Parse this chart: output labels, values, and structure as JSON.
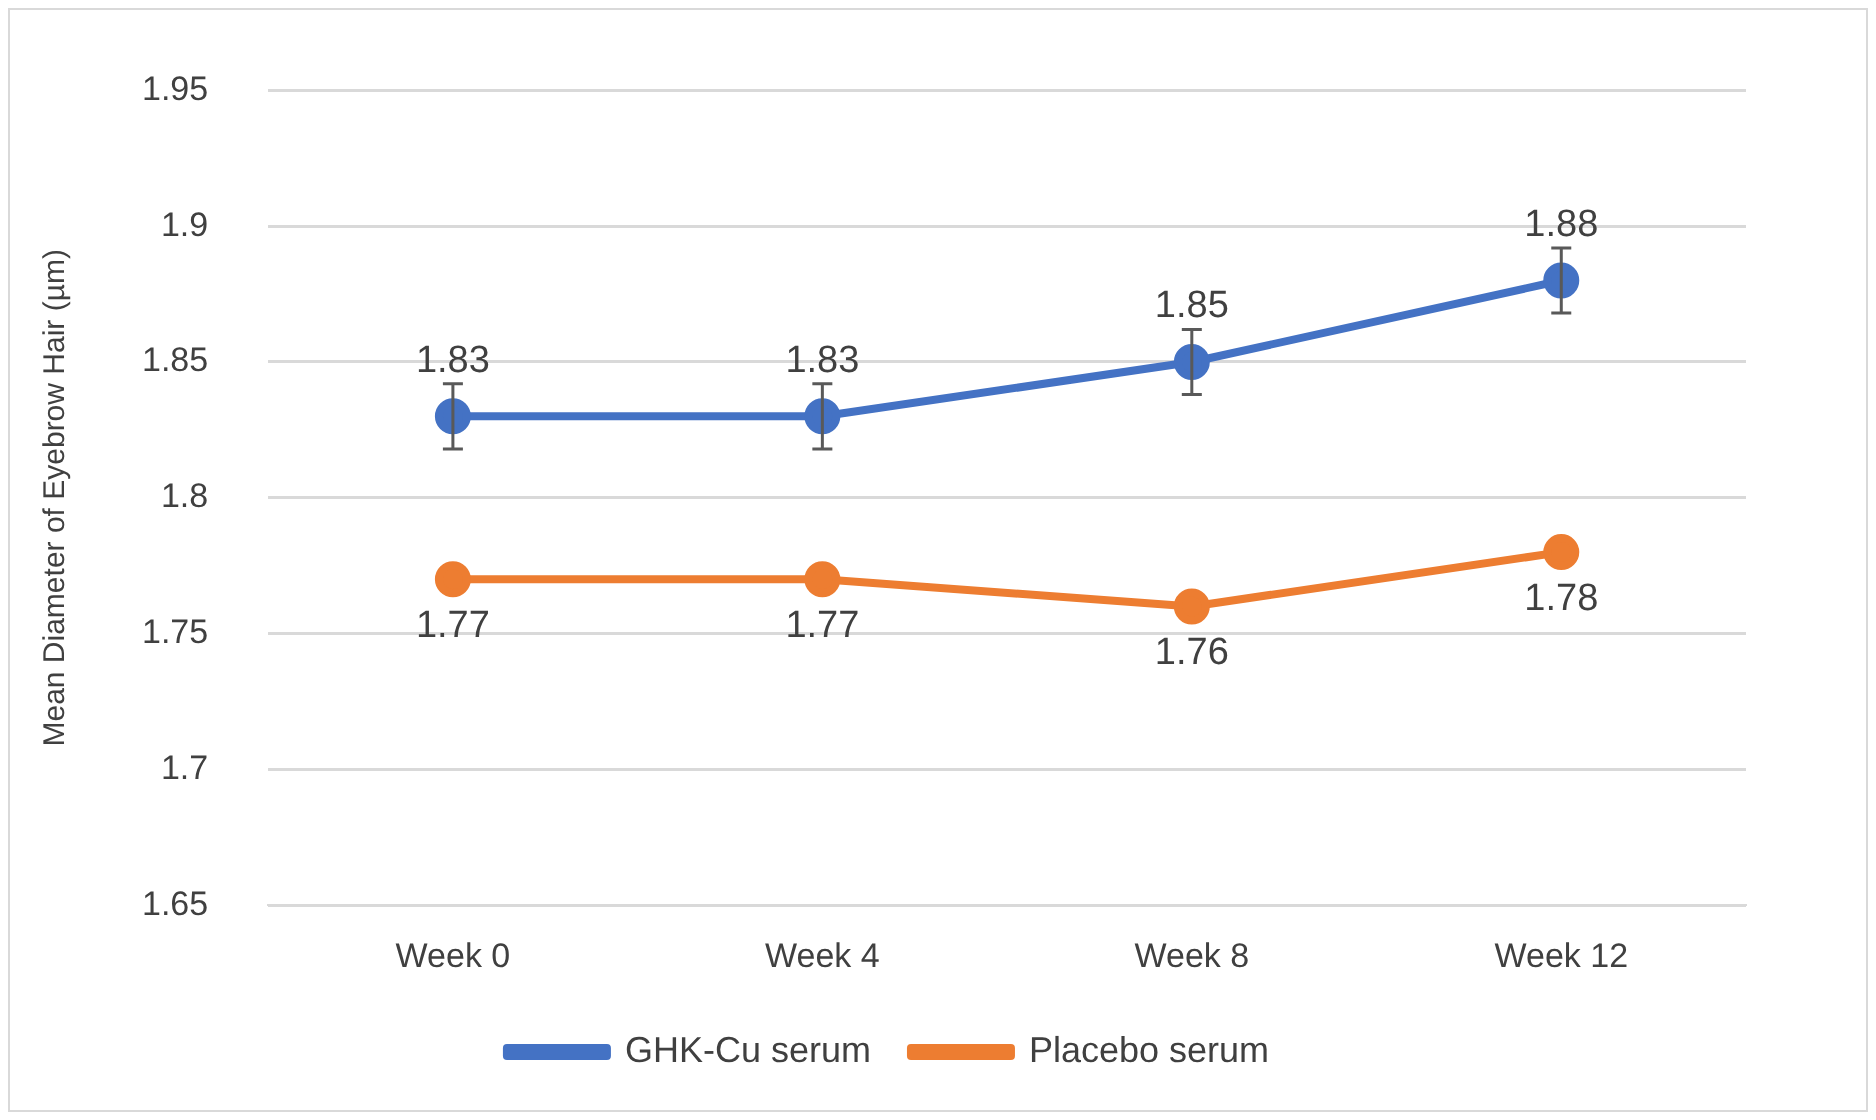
{
  "chart_data": {
    "type": "line",
    "ylabel": "Mean Diameter of Eyebrow Hair (µm)",
    "categories": [
      "Week 0",
      "Week 4",
      "Week 8",
      "Week 12"
    ],
    "series": [
      {
        "name": "GHK-Cu serum",
        "color": "#4472c4",
        "values": [
          1.83,
          1.83,
          1.85,
          1.88
        ],
        "errors": [
          0.012,
          0.012,
          0.012,
          0.012
        ]
      },
      {
        "name": "Placebo serum",
        "color": "#ed7d31",
        "values": [
          1.77,
          1.77,
          1.76,
          1.78
        ]
      }
    ],
    "ylim": [
      1.65,
      1.95
    ],
    "yticks": [
      1.65,
      1.7,
      1.75,
      1.8,
      1.85,
      1.9,
      1.95
    ],
    "grid": "y",
    "legend": "bottom",
    "marker": "circle",
    "line_style": "solid",
    "data_labels": true
  }
}
